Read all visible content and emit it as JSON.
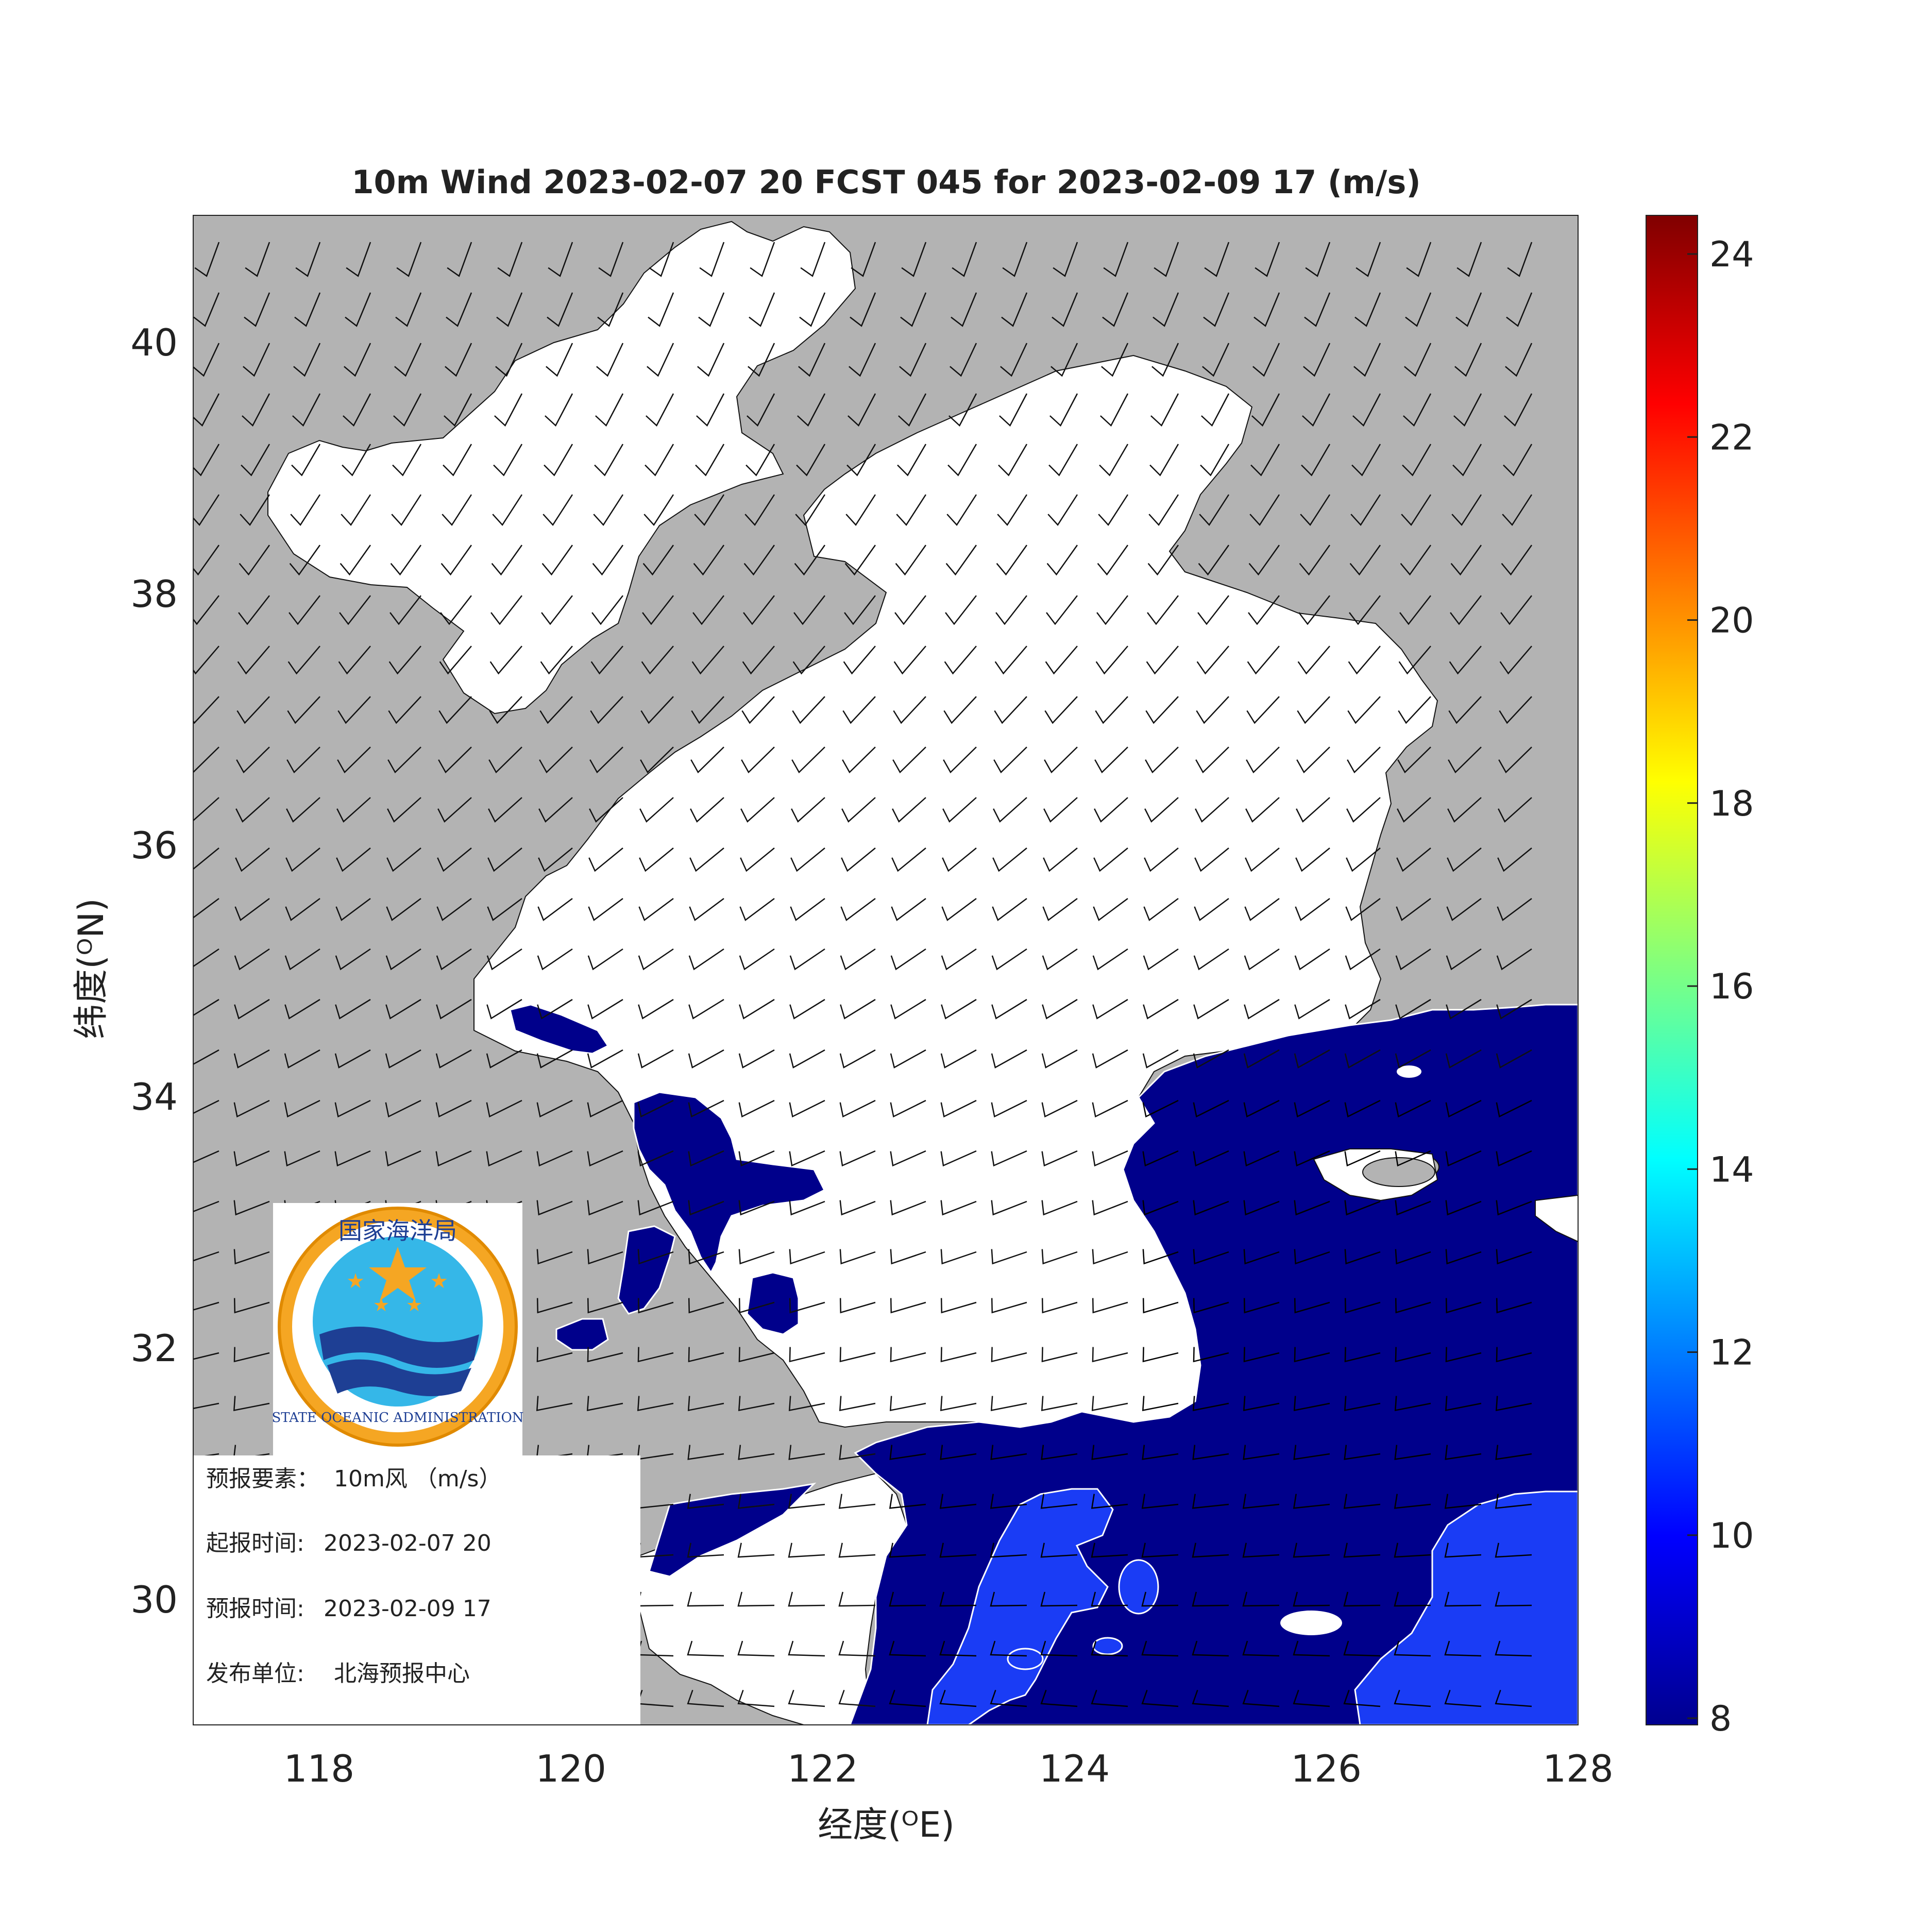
{
  "figure": {
    "title": "10m Wind 2023-02-07 20 FCST 045 for 2023-02-09 17 (m/s)",
    "xlabel": "经度(ᴼE)",
    "ylabel": "纬度(ᴼN)",
    "x_ticks": [
      "118",
      "120",
      "122",
      "124",
      "126",
      "128"
    ],
    "y_ticks": [
      "40",
      "38",
      "36",
      "34",
      "32",
      "30"
    ],
    "colorbar_ticks": [
      "24",
      "22",
      "20",
      "18",
      "16",
      "14",
      "12",
      "10",
      "8"
    ]
  },
  "logo": {
    "text_cn": "国家海洋局",
    "text_en": "STATE OCEANIC ADMINISTRATION"
  },
  "info": {
    "element_label": "预报要素：",
    "element_value": "10m风 （m/s）",
    "start_label": "起报时间:",
    "start_value": "2023-02-07 20",
    "valid_label": "预报时间:",
    "valid_value": "2023-02-09 17",
    "issuer_label": "发布单位:",
    "issuer_value": "北海预报中心"
  },
  "colors": {
    "land": "#b3b3b3",
    "below_threshold": "#ffffff",
    "band_8_10": "#00008b",
    "band_10_12": "#1a3cf5"
  }
}
